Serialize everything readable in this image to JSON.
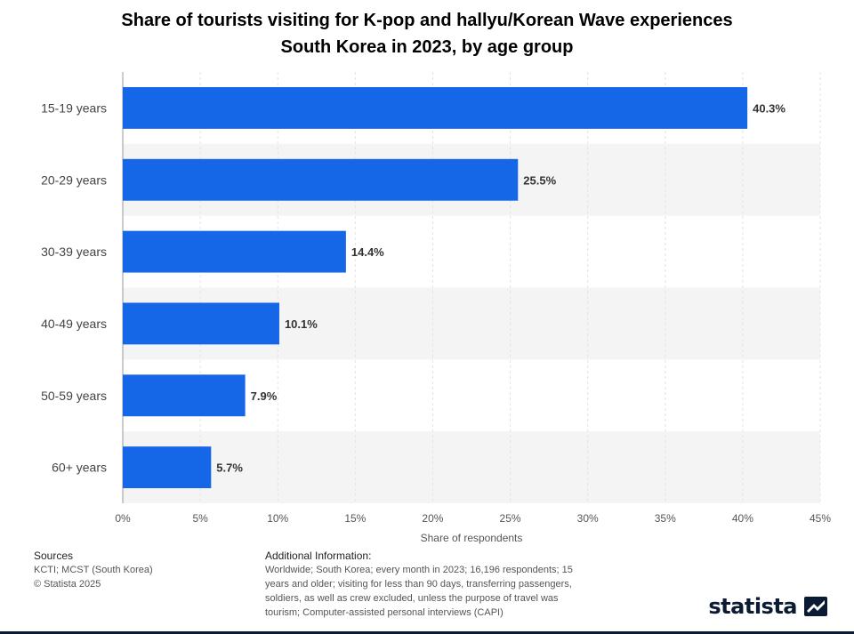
{
  "chart_data": {
    "type": "bar",
    "orientation": "horizontal",
    "title": "Share of tourists visiting for K-pop and hallyu/Korean Wave experiences",
    "subtitle": "South Korea in 2023, by age group",
    "categories": [
      "15-19 years",
      "20-29 years",
      "30-39 years",
      "40-49 years",
      "50-59 years",
      "60+ years"
    ],
    "values": [
      40.3,
      25.5,
      14.4,
      10.1,
      7.9,
      5.7
    ],
    "value_labels": [
      "40.3%",
      "25.5%",
      "14.4%",
      "10.1%",
      "7.9%",
      "5.7%"
    ],
    "xlabel": "Share of respondents",
    "ylabel": "",
    "xlim": [
      0,
      45
    ],
    "x_ticks": [
      0,
      5,
      10,
      15,
      20,
      25,
      30,
      35,
      40,
      45
    ],
    "x_tick_labels": [
      "0%",
      "5%",
      "10%",
      "15%",
      "20%",
      "25%",
      "30%",
      "35%",
      "40%",
      "45%"
    ],
    "grid": true,
    "bar_color": "#1666e8",
    "alt_row_color": "#f4f4f4"
  },
  "footer": {
    "sources_heading": "Sources",
    "sources_lines": [
      "KCTI; MCST (South Korea)",
      "© Statista 2025"
    ],
    "info_heading": "Additional Information:",
    "info_lines": [
      "Worldwide; South Korea; every month in 2023; 16,196 respondents; 15",
      "years and older; visiting for less than 90 days, transferring passengers,",
      "soldiers, as well as crew excluded, unless the purpose of travel was",
      "tourism; Computer-assisted personal interviews (CAPI)"
    ],
    "brand": "statista",
    "brand_icon": "statista-logo-icon"
  }
}
